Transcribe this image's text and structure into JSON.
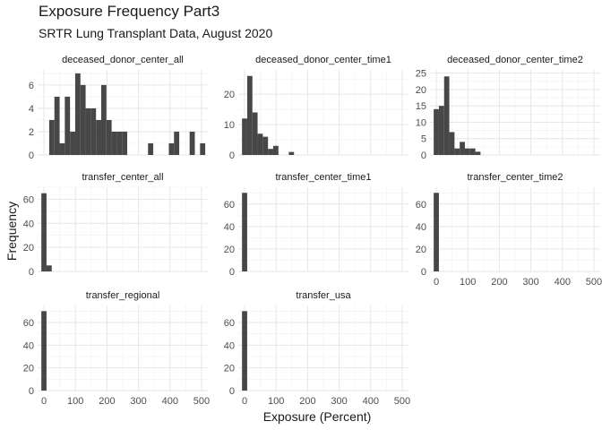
{
  "title": "Exposure Frequency Part3",
  "subtitle": "SRTR Lung Transplant Data, August 2020",
  "chart_data": {
    "type": "bar",
    "subtype": "faceted histogram",
    "xlabel": "Exposure (Percent)",
    "ylabel": "Frequency",
    "xlim": [
      -20,
      520
    ],
    "x_ticks": [
      0,
      100,
      200,
      300,
      400,
      500
    ],
    "bin_width": 16.5,
    "bar_color": "#474747",
    "grid": true,
    "facets": [
      {
        "name": "deceased_donor_center_all",
        "ylim": [
          0,
          7.3
        ],
        "y_ticks": [
          0,
          2,
          4,
          6
        ],
        "bins": [
          {
            "x": 0,
            "count": 0
          },
          {
            "x": 25,
            "count": 3
          },
          {
            "x": 41.5,
            "count": 5
          },
          {
            "x": 58,
            "count": 1
          },
          {
            "x": 74.5,
            "count": 5
          },
          {
            "x": 91,
            "count": 2
          },
          {
            "x": 107.5,
            "count": 7
          },
          {
            "x": 124,
            "count": 6
          },
          {
            "x": 140.5,
            "count": 4
          },
          {
            "x": 157,
            "count": 4
          },
          {
            "x": 173.5,
            "count": 3
          },
          {
            "x": 190,
            "count": 6
          },
          {
            "x": 206.5,
            "count": 3
          },
          {
            "x": 223,
            "count": 2
          },
          {
            "x": 239.5,
            "count": 2
          },
          {
            "x": 256,
            "count": 2
          },
          {
            "x": 338.5,
            "count": 1
          },
          {
            "x": 404.5,
            "count": 1
          },
          {
            "x": 421,
            "count": 2
          },
          {
            "x": 470.5,
            "count": 2
          },
          {
            "x": 503.5,
            "count": 1
          }
        ]
      },
      {
        "name": "deceased_donor_center_time1",
        "ylim": [
          0,
          28
        ],
        "y_ticks": [
          0,
          10,
          20
        ],
        "bins": [
          {
            "x": 0,
            "count": 12
          },
          {
            "x": 16.5,
            "count": 26
          },
          {
            "x": 33,
            "count": 14
          },
          {
            "x": 49.5,
            "count": 7
          },
          {
            "x": 66,
            "count": 6
          },
          {
            "x": 82.5,
            "count": 2
          },
          {
            "x": 99,
            "count": 3
          },
          {
            "x": 148.5,
            "count": 1
          }
        ]
      },
      {
        "name": "deceased_donor_center_time2",
        "ylim": [
          0,
          26
        ],
        "y_ticks": [
          0,
          5,
          10,
          15,
          20,
          25
        ],
        "bins": [
          {
            "x": 0,
            "count": 14
          },
          {
            "x": 16.5,
            "count": 15
          },
          {
            "x": 33,
            "count": 24
          },
          {
            "x": 49.5,
            "count": 7
          },
          {
            "x": 66,
            "count": 2
          },
          {
            "x": 82.5,
            "count": 4
          },
          {
            "x": 99,
            "count": 2
          },
          {
            "x": 115.5,
            "count": 2
          },
          {
            "x": 132,
            "count": 1
          }
        ]
      },
      {
        "name": "transfer_center_all",
        "ylim": [
          0,
          70
        ],
        "y_ticks": [
          0,
          20,
          40,
          60
        ],
        "bins": [
          {
            "x": 0,
            "count": 65
          },
          {
            "x": 16.5,
            "count": 5
          }
        ]
      },
      {
        "name": "transfer_center_time1",
        "ylim": [
          0,
          75
        ],
        "y_ticks": [
          0,
          20,
          40,
          60
        ],
        "bins": [
          {
            "x": 0,
            "count": 70
          }
        ]
      },
      {
        "name": "transfer_center_time2",
        "ylim": [
          0,
          75
        ],
        "y_ticks": [
          0,
          20,
          40,
          60
        ],
        "bins": [
          {
            "x": 0,
            "count": 70
          }
        ]
      },
      {
        "name": "transfer_regional",
        "ylim": [
          0,
          75
        ],
        "y_ticks": [
          0,
          20,
          40,
          60
        ],
        "bins": [
          {
            "x": 0,
            "count": 70
          }
        ]
      },
      {
        "name": "transfer_usa",
        "ylim": [
          0,
          75
        ],
        "y_ticks": [
          0,
          20,
          40,
          60
        ],
        "bins": [
          {
            "x": 0,
            "count": 70
          }
        ]
      }
    ]
  }
}
